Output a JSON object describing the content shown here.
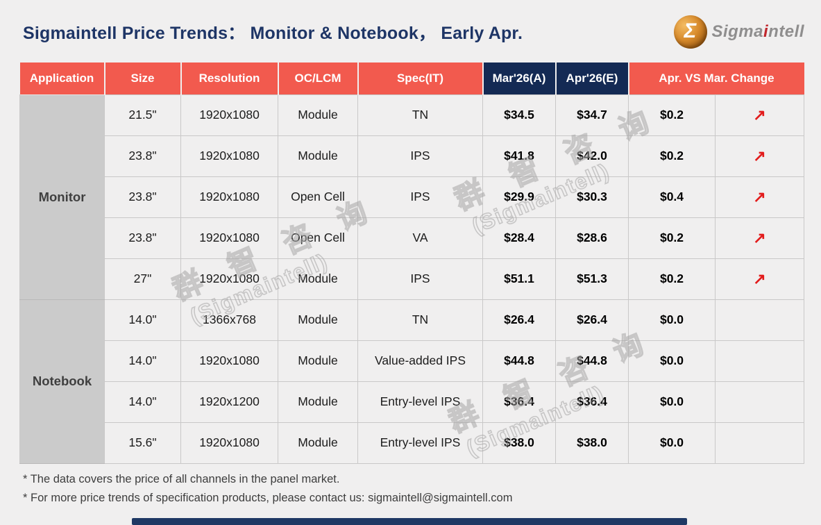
{
  "title": "Sigmaintell Price Trends： Monitor & Notebook， Early Apr.",
  "logo": {
    "sigma_glyph": "Σ",
    "brand_gray1": "Sigma",
    "brand_red": "i",
    "brand_gray2": "ntell"
  },
  "table": {
    "headers": [
      "Application",
      "Size",
      "Resolution",
      "OC/LCM",
      "Spec(IT)",
      "Mar'26(A)",
      "Apr'26(E)",
      "Apr. VS Mar. Change"
    ],
    "up_arrow": "↗",
    "groups": [
      {
        "application": "Monitor",
        "rows": [
          {
            "size": "21.5\"",
            "resolution": "1920x1080",
            "oc_lcm": "Module",
            "spec": "TN",
            "mar": "$34.5",
            "apr": "$34.7",
            "change": "$0.2",
            "trend": "up"
          },
          {
            "size": "23.8\"",
            "resolution": "1920x1080",
            "oc_lcm": "Module",
            "spec": "IPS",
            "mar": "$41.8",
            "apr": "$42.0",
            "change": "$0.2",
            "trend": "up"
          },
          {
            "size": "23.8\"",
            "resolution": "1920x1080",
            "oc_lcm": "Open Cell",
            "spec": "IPS",
            "mar": "$29.9",
            "apr": "$30.3",
            "change": "$0.4",
            "trend": "up"
          },
          {
            "size": "23.8\"",
            "resolution": "1920x1080",
            "oc_lcm": "Open Cell",
            "spec": "VA",
            "mar": "$28.4",
            "apr": "$28.6",
            "change": "$0.2",
            "trend": "up"
          },
          {
            "size": "27\"",
            "resolution": "1920x1080",
            "oc_lcm": "Module",
            "spec": "IPS",
            "mar": "$51.1",
            "apr": "$51.3",
            "change": "$0.2",
            "trend": "up"
          }
        ]
      },
      {
        "application": "Notebook",
        "rows": [
          {
            "size": "14.0\"",
            "resolution": "1366x768",
            "oc_lcm": "Module",
            "spec": "TN",
            "mar": "$26.4",
            "apr": "$26.4",
            "change": "$0.0",
            "trend": "flat"
          },
          {
            "size": "14.0\"",
            "resolution": "1920x1080",
            "oc_lcm": "Module",
            "spec": "Value-added IPS",
            "mar": "$44.8",
            "apr": "$44.8",
            "change": "$0.0",
            "trend": "flat"
          },
          {
            "size": "14.0\"",
            "resolution": "1920x1200",
            "oc_lcm": "Module",
            "spec": "Entry-level IPS",
            "mar": "$36.4",
            "apr": "$36.4",
            "change": "$0.0",
            "trend": "flat"
          },
          {
            "size": "15.6\"",
            "resolution": "1920x1080",
            "oc_lcm": "Module",
            "spec": "Entry-level IPS",
            "mar": "$38.0",
            "apr": "$38.0",
            "change": "$0.0",
            "trend": "flat"
          }
        ]
      }
    ]
  },
  "watermark": {
    "line1": "群 智 咨 询",
    "line2": "(Sigmaintell)"
  },
  "notes": [
    "* The data covers the price of all channels in the panel market.",
    "* For more price trends of specification products, please contact us: sigmaintell@sigmaintell.com"
  ],
  "colors": {
    "header_salmon": "#F25A4E",
    "header_navy": "#142A54",
    "title_navy": "#1E3566",
    "application_gray": "#CBCBCB",
    "arrow_red": "#E21B1B",
    "background": "#F0EFEF",
    "bottom_bar_navy": "#1F3864"
  }
}
